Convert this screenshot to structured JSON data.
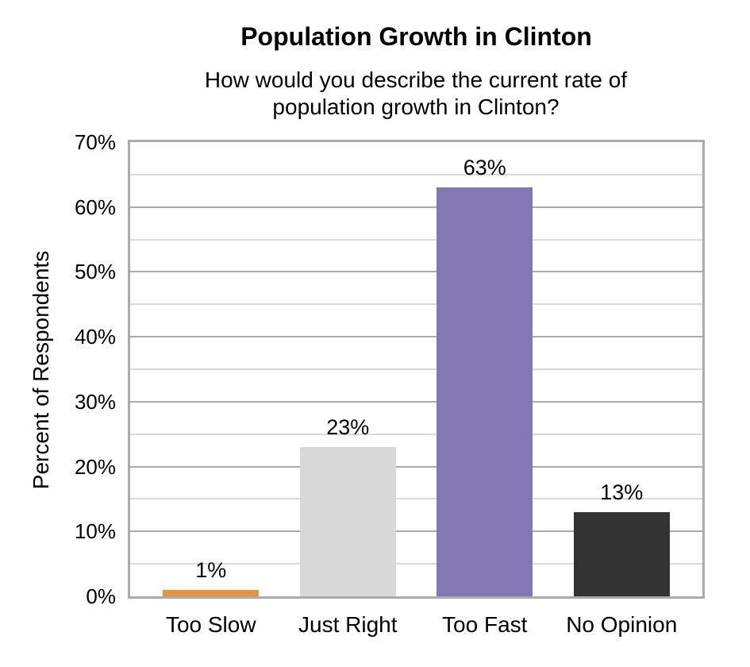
{
  "chart_data": {
    "type": "bar",
    "title": "Population Growth in Clinton",
    "subtitle": "How would you describe the current rate of population growth in Clinton?",
    "ylabel": "Percent of Respondents",
    "xlabel": "",
    "categories": [
      "Too Slow",
      "Just Right",
      "Too Fast",
      "No Opinion"
    ],
    "values": [
      1,
      23,
      63,
      13
    ],
    "data_labels": [
      "1%",
      "23%",
      "63%",
      "13%"
    ],
    "bar_colors": [
      "#E8923D",
      "#D8D8D8",
      "#8377B4",
      "#333333"
    ],
    "ylim": [
      0,
      70
    ],
    "ytick_labels": [
      "0%",
      "10%",
      "20%",
      "30%",
      "40%",
      "50%",
      "60%",
      "70%"
    ],
    "ytick_interval": 10,
    "minor_gridline_interval": 5,
    "grid": true,
    "legend": "none",
    "colors": {
      "major_gridline": "#ABABAB",
      "minor_gridline": "#DADADA",
      "plot_border": "#ABABAB",
      "text": "#000000"
    }
  }
}
